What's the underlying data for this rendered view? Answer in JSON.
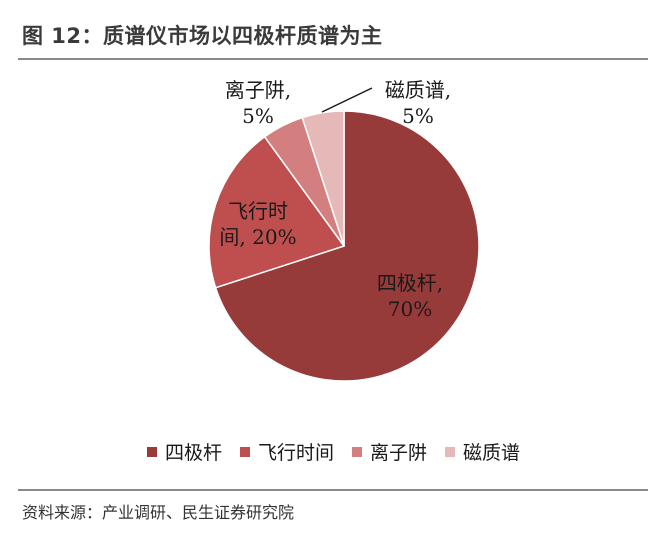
{
  "header": {
    "title": "图 12：质谱仪市场以四极杆质谱为主"
  },
  "footer": {
    "source": "资料来源：产业调研、民生证券研究院"
  },
  "chart_data": {
    "type": "pie",
    "title": "",
    "legend_placement": "bottom",
    "slices": [
      {
        "name": "四极杆",
        "value": 70,
        "value_label": "70%",
        "color": "#963a3a",
        "label_lines": [
          "四极杆,",
          "70%"
        ]
      },
      {
        "name": "飞行时间",
        "value": 20,
        "value_label": "20%",
        "color": "#bf4f4f",
        "label_lines": [
          "飞行时",
          "间, 20%"
        ]
      },
      {
        "name": "离子阱",
        "value": 5,
        "value_label": "5%",
        "color": "#d47f7f",
        "label_lines": [
          "离子阱,",
          "5%"
        ]
      },
      {
        "name": "磁质谱",
        "value": 5,
        "value_label": "5%",
        "color": "#e6b9b9",
        "label_lines": [
          "磁质谱,",
          "5%"
        ]
      }
    ]
  }
}
